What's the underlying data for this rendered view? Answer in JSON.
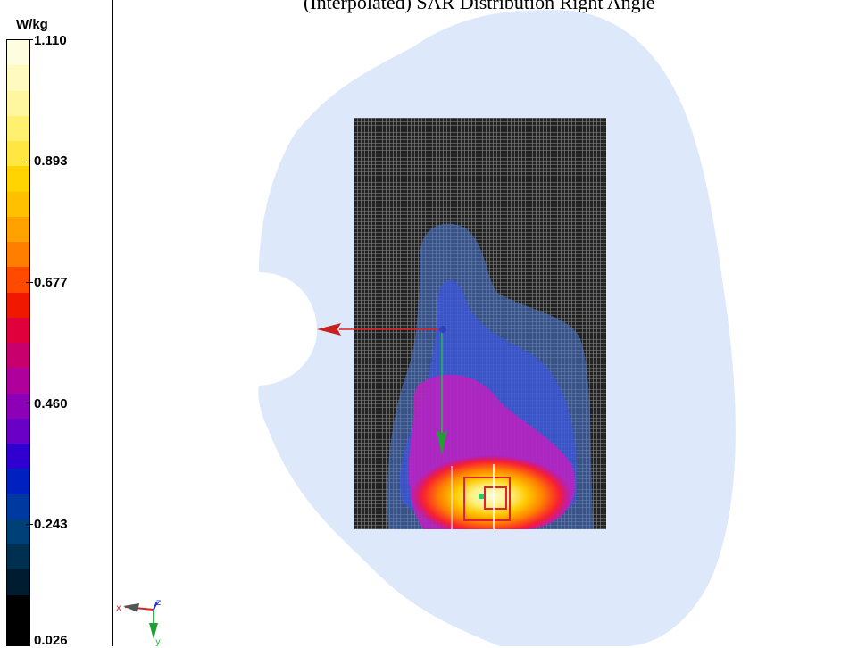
{
  "caption": "(Interpolated) SAR Distribution Right Angle",
  "colorbar": {
    "unit": "W/kg",
    "labels": [
      "1.110",
      "0.893",
      "0.677",
      "0.460",
      "0.243",
      "0.026"
    ],
    "colors": [
      "#fffde0",
      "#fffbc0",
      "#fff6a0",
      "#fff070",
      "#ffe640",
      "#ffd400",
      "#ffc000",
      "#ffa200",
      "#ff7e00",
      "#ff4a00",
      "#f01800",
      "#e0003c",
      "#c8006e",
      "#b0009c",
      "#8c00b8",
      "#6a00c8",
      "#3000d0",
      "#0020c0",
      "#003aa0",
      "#004078",
      "#003050",
      "#001c30",
      "#000000",
      "#000000"
    ]
  },
  "axes_triad": {
    "x_label": "x",
    "y_label": "y",
    "z_label": "z"
  }
}
